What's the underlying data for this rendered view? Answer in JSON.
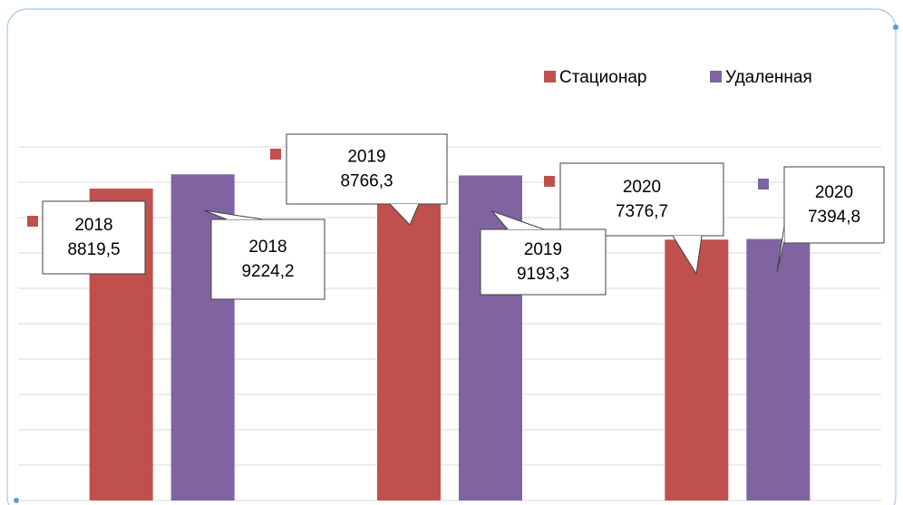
{
  "chart_data": {
    "type": "bar",
    "categories": [
      "2018",
      "2019",
      "2020"
    ],
    "series": [
      {
        "name": "Стационар",
        "color": "#c0504d",
        "values": [
          8819.5,
          8766.3,
          7376.7
        ],
        "value_labels": [
          "8819,5",
          "8766,3",
          "7376,7"
        ]
      },
      {
        "name": "Удаленная",
        "color": "#8064a2",
        "values": [
          9224.2,
          9193.3,
          7394.8
        ],
        "value_labels": [
          "9224,2",
          "9193,3",
          "7394,8"
        ]
      }
    ],
    "ylim": [
      0,
      10000
    ],
    "yticks": [
      0,
      1000,
      2000,
      3000,
      4000,
      5000,
      6000,
      7000,
      8000,
      9000,
      10000
    ],
    "grid": true,
    "legend": "top-right"
  }
}
